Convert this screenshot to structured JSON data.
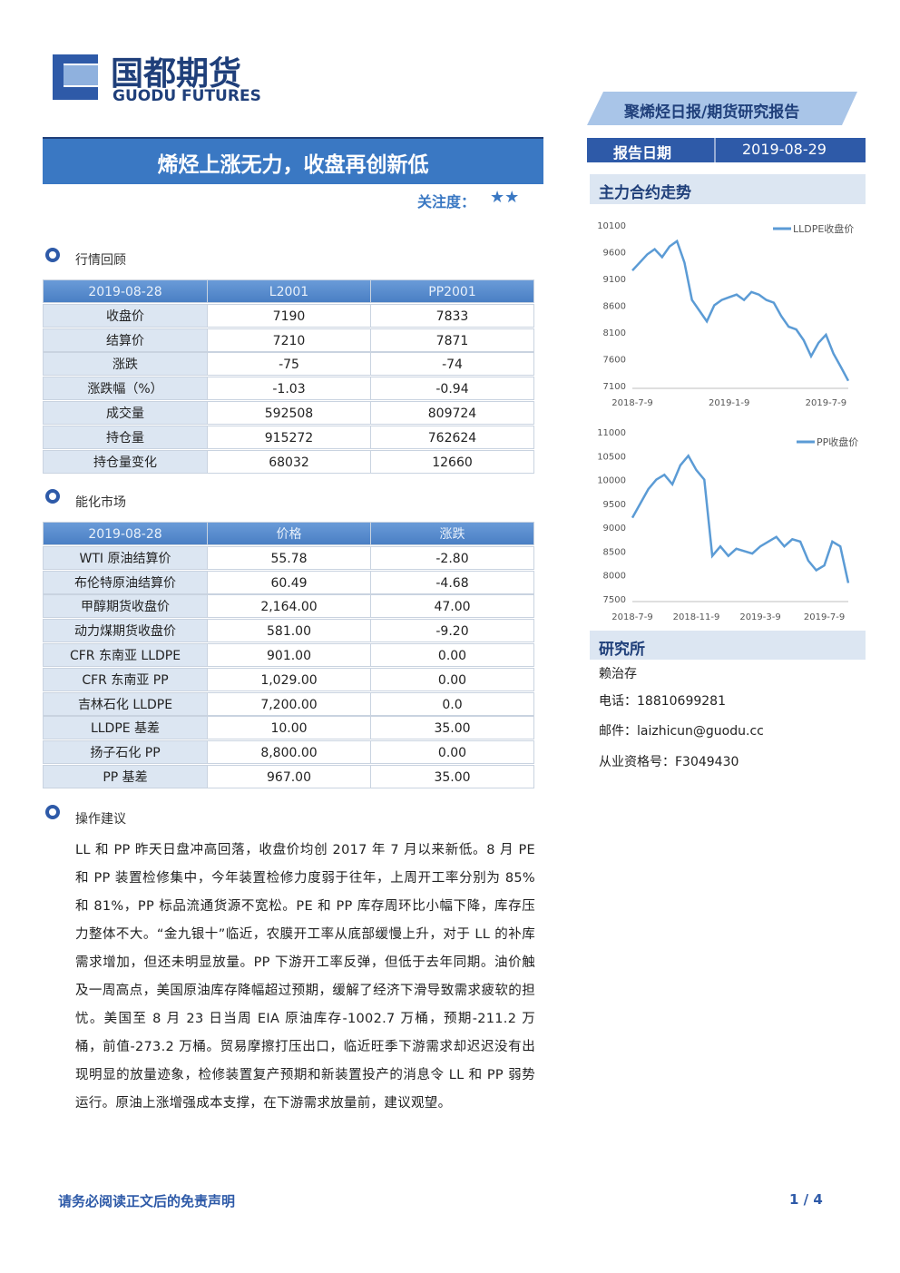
{
  "header": {
    "logo_cn": "国都期货",
    "logo_en": "GUODU FUTURES",
    "report_type": "聚烯烃日报/期货研究报告",
    "title": "烯烃上涨无力，收盘再创新低",
    "attention_label": "关注度：",
    "attention_stars": "★★",
    "date_label": "报告日期",
    "date_value": "2019-08-29"
  },
  "sections": {
    "market_review": "行情回顾",
    "energy_market": "能化市场",
    "advice": "操作建议",
    "trend": "主力合约走势",
    "institute": "研究所"
  },
  "table1": {
    "header": [
      "2019-08-28",
      "L2001",
      "PP2001"
    ],
    "rows": [
      [
        "收盘价",
        "7190",
        "7833"
      ],
      [
        "结算价",
        "7210",
        "7871"
      ],
      [
        "涨跌",
        "-75",
        "-74"
      ],
      [
        "涨跌幅（%）",
        "-1.03",
        "-0.94"
      ],
      [
        "成交量",
        "592508",
        "809724"
      ],
      [
        "持仓量",
        "915272",
        "762624"
      ],
      [
        "持仓量变化",
        "68032",
        "12660"
      ]
    ]
  },
  "table2": {
    "header": [
      "2019-08-28",
      "价格",
      "涨跌"
    ],
    "rows": [
      [
        "WTI 原油结算价",
        "55.78",
        "-2.80"
      ],
      [
        "布伦特原油结算价",
        "60.49",
        "-4.68"
      ],
      [
        "甲醇期货收盘价",
        "2,164.00",
        "47.00"
      ],
      [
        "动力煤期货收盘价",
        "581.00",
        "-9.20"
      ],
      [
        "CFR 东南亚 LLDPE",
        "901.00",
        "0.00"
      ],
      [
        "CFR 东南亚 PP",
        "1,029.00",
        "0.00"
      ],
      [
        "吉林石化 LLDPE",
        "7,200.00",
        "0.0"
      ],
      [
        "LLDPE 基差",
        "10.00",
        "35.00"
      ],
      [
        "扬子石化 PP",
        "8,800.00",
        "0.00"
      ],
      [
        "PP 基差",
        "967.00",
        "35.00"
      ]
    ]
  },
  "advice_text": "LL 和 PP 昨天日盘冲高回落，收盘价均创 2017 年 7 月以来新低。8 月 PE 和 PP 装置检修集中，今年装置检修力度弱于往年，上周开工率分别为 85%和 81%，PP 标品流通货源不宽松。PE 和 PP 库存周环比小幅下降，库存压力整体不大。“金九银十”临近，农膜开工率从底部缓慢上升，对于 LL 的补库需求增加，但还未明显放量。PP 下游开工率反弹，但低于去年同期。油价触及一周高点，美国原油库存降幅超过预期，缓解了经济下滑导致需求疲软的担忧。美国至 8 月 23 日当周 EIA 原油库存-1002.7 万桶，预期-211.2 万桶，前值-273.2 万桶。贸易摩擦打压出口，临近旺季下游需求却迟迟没有出现明显的放量迹象，检修装置复产预期和新装置投产的消息令 LL 和 PP 弱势运行。原油上涨增强成本支撑，在下游需求放量前，建议观望。",
  "contact": {
    "name": "赖治存",
    "phone": "电话：18810699281",
    "email": "邮件：laizhicun@guodu.cc",
    "license": "从业资格号：F3049430"
  },
  "footer": {
    "disclaimer": "请务必阅读正文后的免责声明",
    "page": "1 / 4"
  },
  "chart_data": [
    {
      "type": "line",
      "categories": [
        "2018-7-9",
        null,
        null,
        null,
        null,
        null,
        null,
        null,
        null,
        null,
        null,
        null,
        null,
        "2019-1-9",
        null,
        null,
        null,
        null,
        null,
        null,
        null,
        null,
        null,
        null,
        null,
        null,
        "2019-7-9",
        null,
        null,
        null
      ],
      "series": [
        {
          "name": "LLDPE收盘价",
          "color": "#5b9bd5",
          "values": [
            9250,
            9400,
            9550,
            9650,
            9500,
            9700,
            9800,
            9400,
            8700,
            8500,
            8300,
            8600,
            8700,
            8750,
            8800,
            8700,
            8850,
            8800,
            8700,
            8650,
            8400,
            8200,
            8150,
            7950,
            7650,
            7900,
            8050,
            7700,
            7450,
            7190
          ]
        }
      ],
      "ylim": [
        7100,
        10100
      ],
      "yticks": [
        7100,
        7600,
        8100,
        8600,
        9100,
        9600,
        10100
      ],
      "grid": false,
      "legend": "upper right"
    },
    {
      "type": "line",
      "categories": [
        "2018-7-9",
        null,
        null,
        null,
        null,
        null,
        null,
        null,
        "2018-11-9",
        null,
        null,
        null,
        null,
        null,
        null,
        null,
        "2019-3-9",
        null,
        null,
        null,
        null,
        null,
        null,
        null,
        "2019-7-9",
        null,
        null,
        null
      ],
      "series": [
        {
          "name": "PP收盘价",
          "color": "#5b9bd5",
          "values": [
            9200,
            9500,
            9800,
            10000,
            10100,
            9900,
            10300,
            10500,
            10200,
            10000,
            8400,
            8600,
            8400,
            8550,
            8500,
            8450,
            8600,
            8700,
            8800,
            8600,
            8750,
            8700,
            8300,
            8100,
            8200,
            8700,
            8600,
            7833
          ]
        }
      ],
      "ylim": [
        7500,
        11000
      ],
      "yticks": [
        7500,
        8000,
        8500,
        9000,
        9500,
        10000,
        10500,
        11000
      ],
      "grid": false,
      "legend": "upper right"
    }
  ]
}
